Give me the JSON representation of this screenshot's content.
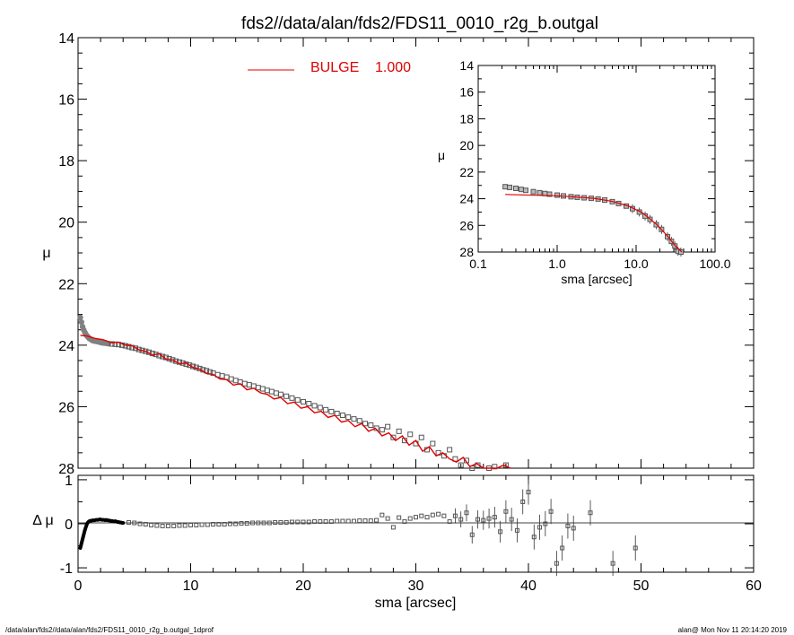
{
  "title": "fds2//data/alan/fds2/FDS11_0010_r2g_b.outgal",
  "footer_left": "/data/alan/fds2//data/alan/fds2/FDS11_0010_r2g_b.outgal_1dprof",
  "footer_right": "alan@  Mon Nov 11 20:14:20 2019",
  "legend": {
    "label": "BULGE",
    "value": "1.000",
    "color": "#e00000"
  },
  "colors": {
    "data": "#808080",
    "model": "#e00000",
    "axes": "#000000"
  },
  "chart_data": [
    {
      "id": "main",
      "type": "scatter",
      "xlabel": "",
      "ylabel": "μ",
      "xlim": [
        0,
        60
      ],
      "ylim": [
        28,
        14
      ],
      "ytick_labels": [
        "14",
        "16",
        "18",
        "20",
        "22",
        "24",
        "26",
        "28"
      ],
      "series": [
        {
          "name": "data",
          "x": [
            0.2,
            0.3,
            0.4,
            0.5,
            0.6,
            0.7,
            0.8,
            0.9,
            1.0,
            1.1,
            1.2,
            1.3,
            1.5,
            1.7,
            1.9,
            2.1,
            2.3,
            2.5,
            2.7,
            3.0,
            3.3,
            3.6,
            3.9,
            4.2,
            4.5,
            4.8,
            5.1,
            5.4,
            5.7,
            6.0,
            6.3,
            6.6,
            6.9,
            7.2,
            7.5,
            7.8,
            8.1,
            8.4,
            8.7,
            9.0,
            9.3,
            9.6,
            9.9,
            10.2,
            10.5,
            10.8,
            11.1,
            11.4,
            11.7,
            12.0,
            12.4,
            12.8,
            13.2,
            13.6,
            14.0,
            14.4,
            14.8,
            15.2,
            15.6,
            16.0,
            16.4,
            16.8,
            17.2,
            17.6,
            18.0,
            18.5,
            19.0,
            19.5,
            20.0,
            20.5,
            21.0,
            21.5,
            22.0,
            22.5,
            23.0,
            23.5,
            24.0,
            24.5,
            25.0,
            25.5,
            26.0,
            26.5,
            27.0,
            27.5,
            28.0,
            28.5,
            29.0,
            29.5,
            30.0,
            30.5,
            31.0,
            31.5,
            32.0,
            32.5,
            33.0,
            33.5,
            34.0,
            34.5,
            35.0,
            35.5,
            36.0,
            36.5,
            37.0,
            37.5,
            38.0
          ],
          "y": [
            23.1,
            23.25,
            23.4,
            23.5,
            23.58,
            23.65,
            23.7,
            23.74,
            23.78,
            23.8,
            23.83,
            23.85,
            23.87,
            23.88,
            23.9,
            23.92,
            23.93,
            23.94,
            23.95,
            23.96,
            23.97,
            23.98,
            24.0,
            24.02,
            24.05,
            24.08,
            24.1,
            24.14,
            24.17,
            24.2,
            24.23,
            24.27,
            24.3,
            24.34,
            24.37,
            24.4,
            24.44,
            24.48,
            24.52,
            24.55,
            24.58,
            24.62,
            24.65,
            24.69,
            24.72,
            24.76,
            24.8,
            24.83,
            24.87,
            24.91,
            24.96,
            25.0,
            25.04,
            25.1,
            25.15,
            25.2,
            25.25,
            25.29,
            25.33,
            25.38,
            25.42,
            25.47,
            25.51,
            25.56,
            25.6,
            25.66,
            25.72,
            25.78,
            25.84,
            25.9,
            25.97,
            26.03,
            26.1,
            26.16,
            26.22,
            26.28,
            26.34,
            26.4,
            26.46,
            26.55,
            26.6,
            26.7,
            26.75,
            26.65,
            27.0,
            26.8,
            27.1,
            26.9,
            27.2,
            27.0,
            27.4,
            27.2,
            27.5,
            27.6,
            27.4,
            27.7,
            27.9,
            27.75,
            28.0,
            27.9,
            28.05,
            28.0,
            27.95,
            28.1,
            27.9
          ]
        },
        {
          "name": "model",
          "x": [
            0.2,
            0.8,
            1.5,
            2.2,
            3.0,
            3.6,
            4.2,
            4.8,
            5.4,
            6.0,
            6.6,
            7.2,
            7.8,
            8.4,
            9.0,
            9.6,
            10.2,
            10.8,
            11.4,
            12.0,
            12.6,
            13.2,
            13.8,
            14.4,
            15.0,
            15.6,
            16.2,
            16.8,
            17.4,
            18.0,
            18.6,
            19.2,
            19.8,
            20.4,
            21.0,
            21.6,
            22.2,
            22.8,
            23.4,
            24.0,
            24.6,
            25.2,
            25.8,
            26.4,
            27.0,
            27.6,
            28.2,
            28.8,
            29.4,
            30.0,
            30.6,
            31.2,
            31.8,
            32.4,
            33.0,
            33.6,
            34.2,
            34.8,
            35.4,
            36.0,
            36.6,
            37.2,
            37.8,
            38.4
          ],
          "y": [
            23.68,
            23.7,
            23.78,
            23.82,
            23.92,
            23.9,
            24.0,
            24.02,
            24.15,
            24.2,
            24.32,
            24.28,
            24.45,
            24.48,
            24.6,
            24.58,
            24.72,
            24.78,
            24.92,
            24.95,
            25.1,
            25.12,
            25.3,
            25.25,
            25.45,
            25.4,
            25.55,
            25.6,
            25.75,
            25.7,
            25.9,
            25.85,
            26.05,
            26.0,
            26.2,
            26.15,
            26.35,
            26.28,
            26.5,
            26.45,
            26.65,
            26.55,
            26.8,
            26.7,
            26.95,
            26.85,
            27.1,
            26.95,
            27.25,
            27.1,
            27.45,
            27.3,
            27.6,
            27.5,
            27.7,
            27.8,
            27.65,
            27.95,
            27.85,
            28.2,
            28.0,
            28.15,
            27.9,
            28.1
          ]
        }
      ]
    },
    {
      "id": "residual",
      "type": "scatter",
      "xlabel": "sma [arcsec]",
      "ylabel": "Δ μ",
      "xlim": [
        0,
        60
      ],
      "ylim": [
        -1.1,
        1.1
      ],
      "xtick_labels": [
        "0",
        "10",
        "20",
        "30",
        "40",
        "50",
        "60"
      ],
      "ytick_labels": [
        "1",
        "0",
        "-1"
      ],
      "series": [
        {
          "name": "inner",
          "x": [
            0.2,
            0.3,
            0.4,
            0.5,
            0.6,
            0.7,
            0.8,
            0.9,
            1.0,
            1.1,
            1.2,
            1.3,
            1.4,
            1.5,
            1.6,
            1.7,
            1.8,
            1.9,
            2.0,
            2.1,
            2.2,
            2.3,
            2.4,
            2.5,
            2.6,
            2.7,
            2.8,
            2.9,
            3.0,
            3.1,
            3.2,
            3.3,
            3.4,
            3.5,
            3.6,
            3.7,
            3.8,
            3.9,
            4.0
          ],
          "y": [
            -0.55,
            -0.45,
            -0.35,
            -0.25,
            -0.15,
            -0.07,
            0.0,
            0.04,
            0.06,
            0.07,
            0.07,
            0.08,
            0.08,
            0.08,
            0.09,
            0.09,
            0.09,
            0.1,
            0.1,
            0.09,
            0.09,
            0.09,
            0.08,
            0.09,
            0.08,
            0.08,
            0.07,
            0.07,
            0.06,
            0.06,
            0.05,
            0.06,
            0.05,
            0.04,
            0.04,
            0.03,
            0.03,
            0.02,
            0.02
          ]
        },
        {
          "name": "outer",
          "x": [
            4.5,
            5.0,
            5.5,
            6.0,
            6.5,
            7.0,
            7.5,
            8.0,
            8.5,
            9.0,
            9.5,
            10.0,
            10.5,
            11.0,
            11.5,
            12.0,
            12.5,
            13.0,
            13.5,
            14.0,
            14.5,
            15.0,
            15.5,
            16.0,
            16.5,
            17.0,
            17.5,
            18.0,
            18.5,
            19.0,
            19.5,
            20.0,
            20.5,
            21.0,
            21.5,
            22.0,
            22.5,
            23.0,
            23.5,
            24.0,
            24.5,
            25.0,
            25.5,
            26.0,
            26.5,
            27.0,
            27.5,
            28.0,
            28.5,
            29.0,
            29.5,
            30.0,
            30.5,
            31.0,
            31.5,
            32.0,
            32.5,
            33.0,
            33.5,
            34.0,
            34.5,
            35.0,
            35.5,
            36.0,
            36.5,
            37.0,
            37.5,
            38.0,
            38.5,
            39.0,
            39.5,
            40.0,
            40.5,
            41.0,
            41.5,
            42.0,
            42.5,
            43.0,
            43.5,
            44.0,
            45.5,
            47.5,
            49.5
          ],
          "y": [
            0.03,
            0.02,
            0.0,
            -0.01,
            -0.03,
            -0.04,
            -0.05,
            -0.05,
            -0.05,
            -0.04,
            -0.04,
            -0.03,
            -0.03,
            -0.02,
            -0.02,
            -0.01,
            -0.01,
            -0.01,
            0.0,
            0.0,
            0.01,
            0.01,
            0.02,
            0.02,
            0.02,
            0.02,
            0.03,
            0.03,
            0.03,
            0.04,
            0.04,
            0.04,
            0.04,
            0.05,
            0.05,
            0.05,
            0.05,
            0.06,
            0.06,
            0.06,
            0.06,
            0.07,
            0.07,
            0.07,
            0.08,
            0.2,
            0.12,
            -0.08,
            0.14,
            0.05,
            0.12,
            0.15,
            0.18,
            0.15,
            0.2,
            0.22,
            0.18,
            0.05,
            0.18,
            0.1,
            0.25,
            -0.25,
            0.1,
            0.08,
            0.12,
            0.15,
            -0.18,
            0.28,
            0.1,
            -0.15,
            0.5,
            0.72,
            -0.3,
            -0.08,
            0.0,
            0.28,
            -0.9,
            -0.55,
            -0.05,
            -0.1,
            0.25,
            -0.9,
            -0.55
          ]
        }
      ]
    },
    {
      "id": "inset",
      "type": "scatter",
      "xlabel": "sma [arcsec]",
      "ylabel": "μ",
      "xscale": "log",
      "xlim": [
        0.1,
        100
      ],
      "ylim": [
        28,
        14
      ],
      "xtick_labels": [
        "0.1",
        "1.0",
        "10.0",
        "100.0"
      ],
      "ytick_labels": [
        "14",
        "16",
        "18",
        "20",
        "22",
        "24",
        "26",
        "28"
      ],
      "series": [
        {
          "name": "data",
          "x": [
            0.22,
            0.25,
            0.3,
            0.35,
            0.4,
            0.5,
            0.6,
            0.7,
            0.8,
            1.0,
            1.2,
            1.5,
            1.8,
            2.2,
            2.7,
            3.3,
            4.0,
            5.0,
            6.0,
            7.5,
            9.0,
            11.0,
            13.0,
            15.0,
            18.0,
            21.0,
            25.0,
            28.0,
            31.0,
            34.0,
            37.0
          ],
          "y": [
            23.1,
            23.15,
            23.22,
            23.3,
            23.37,
            23.47,
            23.55,
            23.61,
            23.66,
            23.73,
            23.79,
            23.85,
            23.89,
            23.93,
            23.97,
            24.02,
            24.1,
            24.22,
            24.36,
            24.55,
            24.75,
            25.0,
            25.3,
            25.55,
            25.95,
            26.3,
            26.85,
            27.2,
            27.55,
            27.95,
            28.0
          ]
        },
        {
          "name": "model",
          "x": [
            0.22,
            1.0,
            2.0,
            3.0,
            5.0,
            8.0,
            12.0,
            18.0,
            25.0,
            32.0,
            38.0
          ],
          "y": [
            23.68,
            23.78,
            23.9,
            23.98,
            24.2,
            24.55,
            25.05,
            25.9,
            26.8,
            27.6,
            28.1
          ]
        }
      ]
    }
  ]
}
